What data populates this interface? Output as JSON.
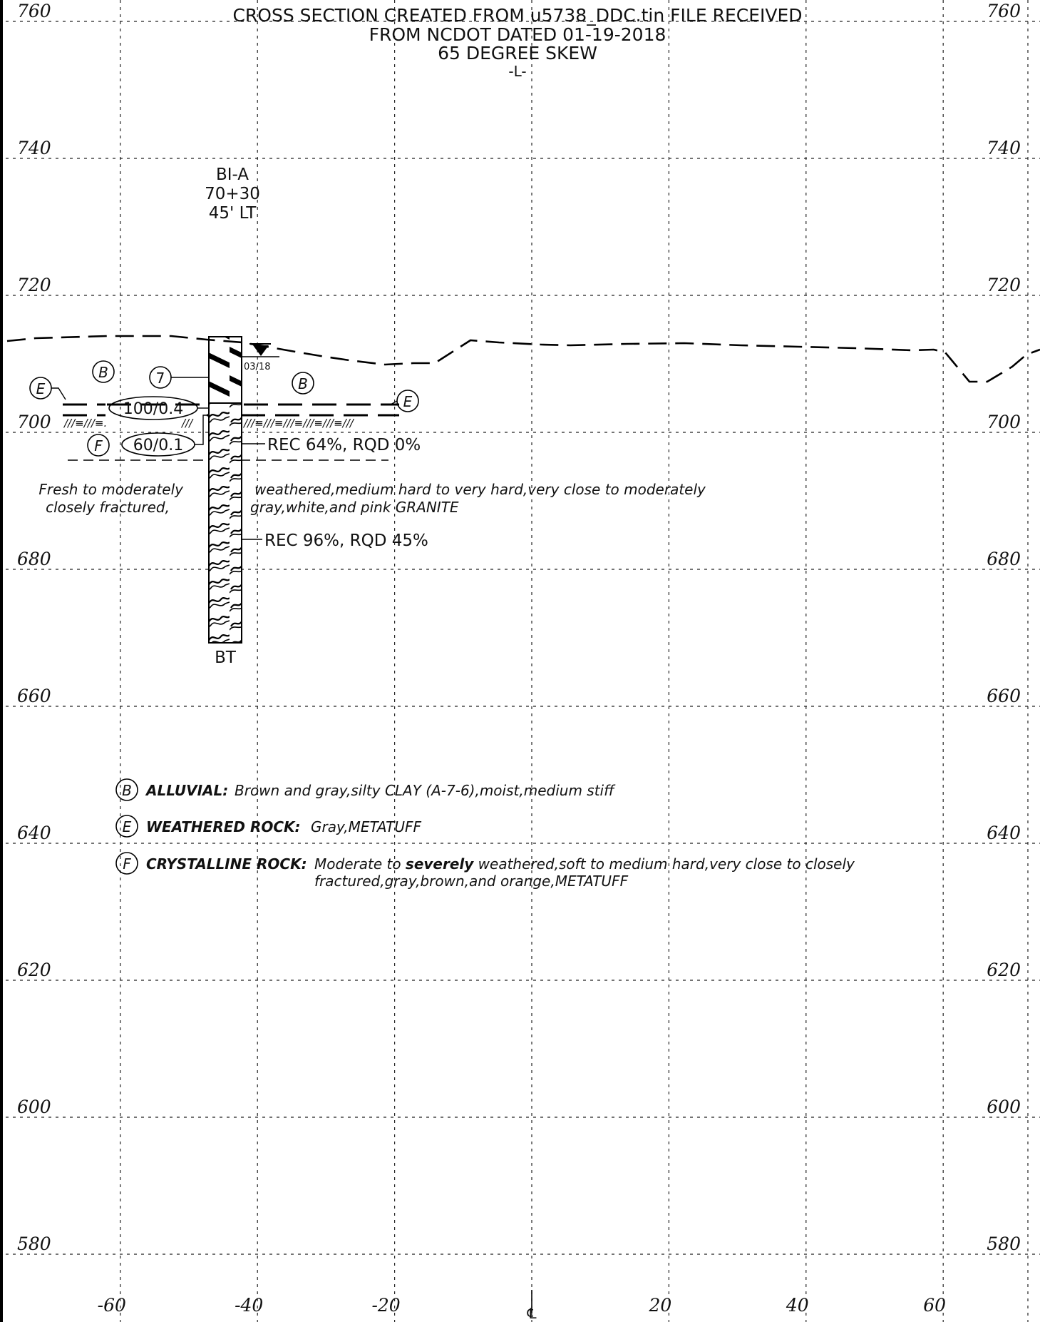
{
  "title": {
    "line1": "CROSS SECTION CREATED FROM u5738_DDC.tin FILE RECEIVED",
    "line2": "FROM NCDOT DATED 01-19-2018",
    "line3": "65 DEGREE SKEW",
    "line4": "-L-"
  },
  "axes": {
    "elevation_ticks": [
      760,
      740,
      720,
      700,
      680,
      660,
      640,
      620,
      600,
      580
    ],
    "offset_ticks": [
      "-60",
      "-40",
      "-20",
      "20",
      "40",
      "60"
    ],
    "centerline_symbol": "℄"
  },
  "boring": {
    "id": "BI-A",
    "station": "70+30",
    "offset": "45' LT",
    "terminal": "BT",
    "water_date": "03/18",
    "blow_count_1": "7",
    "blow_count_2": "100/0.4",
    "blow_count_3": "60/0.1",
    "core_run_1": "REC 64%, RQD 0%",
    "core_run_2": "REC 96%, RQD 45%"
  },
  "labels": {
    "b": "B",
    "e": "E",
    "f": "F"
  },
  "rock_description": {
    "left1": "Fresh to moderately",
    "left2": "closely fractured,",
    "right1": "weathered,medium hard to very hard,very close to moderately",
    "right2": "gray,white,and pink GRANITE"
  },
  "legend": [
    {
      "symbol": "B",
      "name": "ALLUVIAL:",
      "desc": "Brown and gray,silty CLAY (A-7-6),moist,medium stiff",
      "desc2": ""
    },
    {
      "symbol": "E",
      "name": "WEATHERED ROCK:",
      "desc": "Gray,METATUFF",
      "desc2": ""
    },
    {
      "symbol": "F",
      "name": "CRYSTALLINE ROCK:",
      "desc_pre": "Moderate to ",
      "desc_bold": "severely",
      "desc_post": " weathered,soft to medium hard,very close to closely",
      "desc2": "fractured,gray,brown,and orange,METATUFF"
    }
  ]
}
